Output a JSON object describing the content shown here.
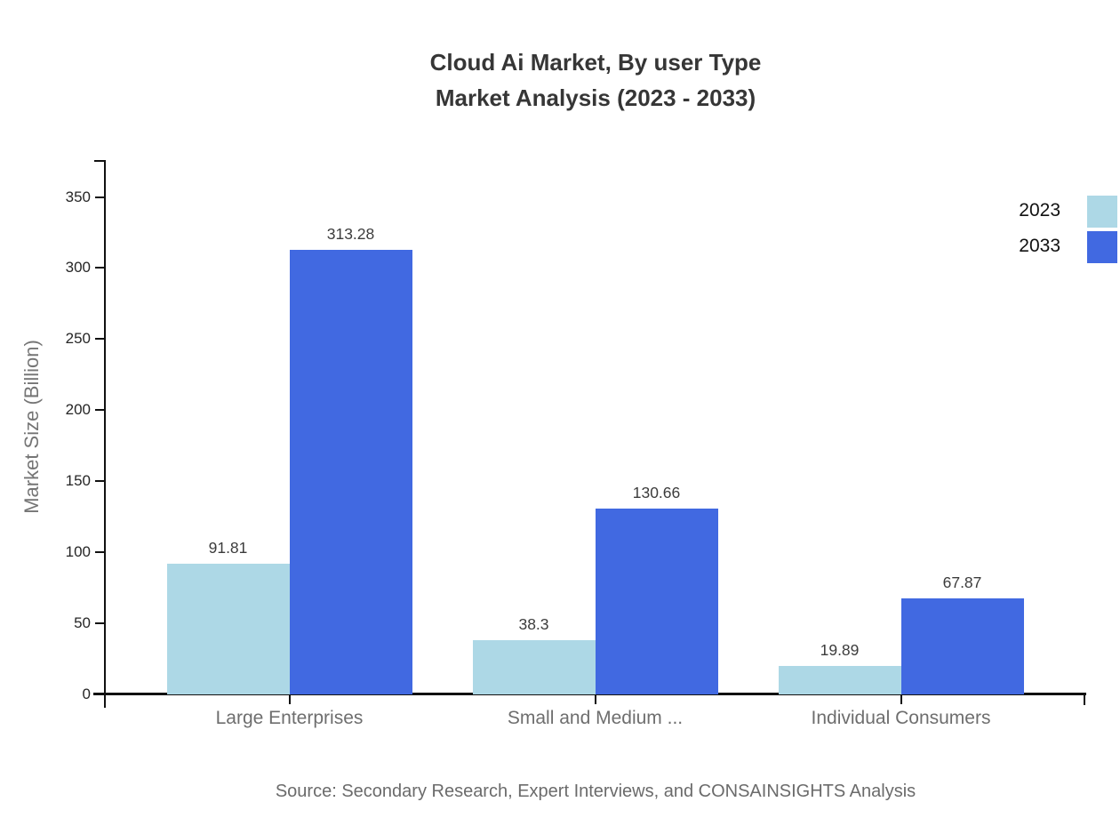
{
  "chart_data": {
    "type": "bar",
    "title": "Cloud Ai Market, By user Type",
    "subtitle": "Market Analysis (2023 - 2033)",
    "ylabel": "Market Size (Billion)",
    "xlabel": "",
    "categories": [
      "Large Enterprises",
      "Small and Medium ...",
      "Individual Consumers"
    ],
    "series": [
      {
        "name": "2023",
        "color": "#ADD8E6",
        "values": [
          91.81,
          38.3,
          19.89
        ]
      },
      {
        "name": "2033",
        "color": "#4169E1",
        "values": [
          313.28,
          130.66,
          67.87
        ]
      }
    ],
    "yticks": [
      0,
      50,
      100,
      150,
      200,
      250,
      300,
      350
    ],
    "ylim": [
      0,
      376
    ],
    "grid": false,
    "legend_position": "top-right",
    "bar_value_labels": true,
    "axis_color": "#111111",
    "background_color": "#ffffff"
  },
  "footer": {
    "source": "Source: Secondary Research, Expert Interviews, and CONSAINSIGHTS Analysis"
  }
}
